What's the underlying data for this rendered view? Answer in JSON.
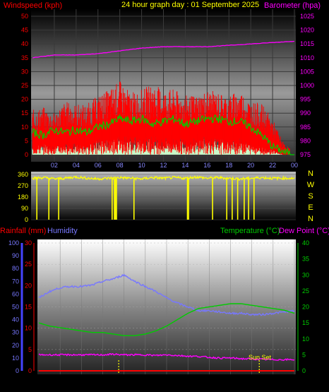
{
  "header": {
    "left_label": "Windspeed (kph)",
    "center_title": "24 hour graph day : 01 September 2025",
    "right_label": "Barometer (hpa)"
  },
  "bottom_header": {
    "rainfall": "Rainfall (mm)",
    "humidity": "Humidity",
    "temperature": "Temperature (°C)",
    "dewpoint": "Dew Point (°C)"
  },
  "sun_label": "Sun Set",
  "colors": {
    "windspeed": "#ff0000",
    "windavg": "#00cc00",
    "gust_fill": "#ccffcc",
    "barometer": "#ff00ff",
    "direction": "#ffff00",
    "humidity": "#7777ff",
    "temperature": "#00cc00",
    "dewpoint": "#ff00ff",
    "rainfall": "#ff0000"
  },
  "chart_data": [
    {
      "type": "area",
      "name": "wind",
      "x_ticks": [
        "02",
        "04",
        "06",
        "08",
        "10",
        "12",
        "14",
        "16",
        "18",
        "20",
        "22",
        "00"
      ],
      "y_left_ticks": [
        0,
        5,
        10,
        15,
        20,
        25,
        30,
        35,
        40,
        45,
        50
      ],
      "y_right_ticks": [
        975,
        980,
        985,
        990,
        995,
        1000,
        1005,
        1010,
        1015,
        1020,
        1025
      ],
      "ylim_left": [
        0,
        50
      ],
      "ylim_right": [
        975,
        1025
      ],
      "series": [
        {
          "name": "Windspeed",
          "x": [
            0,
            1,
            2,
            3,
            4,
            5,
            6,
            7,
            8,
            9,
            10,
            11,
            12,
            13,
            14,
            15,
            16,
            17,
            18,
            19,
            20,
            21,
            22,
            23,
            24
          ],
          "max": [
            15,
            16,
            14,
            18,
            17,
            17,
            20,
            22,
            25,
            21,
            22,
            24,
            22,
            22,
            20,
            20,
            22,
            21,
            20,
            22,
            18,
            17,
            12,
            4,
            1
          ],
          "min": [
            3,
            4,
            3,
            4,
            4,
            3,
            6,
            6,
            7,
            7,
            6,
            7,
            6,
            6,
            6,
            6,
            7,
            6,
            5,
            6,
            4,
            3,
            2,
            0,
            0
          ]
        },
        {
          "name": "Avg",
          "x": [
            0,
            1,
            2,
            3,
            4,
            5,
            6,
            7,
            8,
            9,
            10,
            11,
            12,
            13,
            14,
            15,
            16,
            17,
            18,
            19,
            20,
            21,
            22,
            23,
            24
          ],
          "values": [
            8,
            7,
            9,
            8,
            9,
            8,
            10,
            11,
            13,
            12,
            13,
            11,
            12,
            13,
            11,
            12,
            13,
            13,
            12,
            12,
            10,
            7,
            3,
            1,
            0
          ]
        },
        {
          "name": "Gust",
          "x": [
            0,
            1,
            2,
            3,
            4,
            5,
            6,
            7,
            8,
            9,
            10,
            11,
            12,
            13,
            14,
            15,
            16,
            17,
            18,
            19,
            20,
            21,
            22,
            23,
            24
          ],
          "values": [
            3,
            4,
            3,
            4,
            3,
            4,
            5,
            6,
            5,
            4,
            5,
            6,
            4,
            5,
            4,
            5,
            5,
            6,
            5,
            4,
            4,
            3,
            2,
            0,
            0
          ]
        },
        {
          "name": "Barometer",
          "x": [
            0,
            2,
            4,
            6,
            8,
            10,
            12,
            14,
            16,
            18,
            20,
            22,
            24
          ],
          "values": [
            1010,
            1011,
            1011,
            1011.5,
            1012.5,
            1013.5,
            1014,
            1014,
            1014,
            1014.5,
            1015,
            1015.5,
            1016
          ]
        }
      ]
    },
    {
      "type": "line",
      "name": "direction",
      "y_labels": [
        "360",
        "270",
        "180",
        "90",
        "0"
      ],
      "compass": [
        "N",
        "W",
        "S",
        "E",
        "N"
      ],
      "base": [
        330,
        335,
        325,
        330,
        340,
        330,
        325,
        330,
        335,
        330,
        325,
        335,
        330,
        335,
        330,
        340,
        330,
        335,
        330,
        325,
        330,
        335,
        330,
        330,
        330
      ],
      "drops": [
        0.4,
        1.5,
        2.4,
        7.3,
        7.5,
        7.6,
        7.7,
        9.3,
        14.2,
        14.3,
        16.5,
        17.8,
        18.3,
        18.8,
        19.4,
        19.8,
        20.3
      ]
    },
    {
      "type": "line",
      "name": "temperature",
      "x_ticks": [
        "02",
        "04",
        "06",
        "08",
        "10",
        "12",
        "14",
        "16",
        "18",
        "20",
        "22",
        "00"
      ],
      "humidity_ticks": [
        0,
        10,
        20,
        30,
        40,
        50,
        60,
        70,
        80,
        90,
        100
      ],
      "rain_ticks": [
        0,
        5,
        10,
        15,
        20,
        25,
        30
      ],
      "temp_ticks_right": [
        0,
        5,
        10,
        15,
        20,
        25,
        30,
        35,
        40
      ],
      "series": [
        {
          "name": "Humidity",
          "x": [
            0,
            1,
            2,
            3,
            4,
            5,
            6,
            7,
            8,
            9,
            10,
            11,
            12,
            13,
            14,
            15,
            16,
            17,
            18,
            19,
            20,
            21,
            22,
            23,
            24
          ],
          "values": [
            57,
            62,
            65,
            66,
            66,
            67,
            70,
            72,
            75,
            70,
            66,
            62,
            57,
            53,
            50,
            47,
            47,
            46,
            45,
            45,
            44,
            44,
            45,
            46,
            47
          ]
        },
        {
          "name": "Temperature",
          "x": [
            0,
            1,
            2,
            3,
            4,
            5,
            6,
            7,
            8,
            9,
            10,
            11,
            12,
            13,
            14,
            15,
            16,
            17,
            18,
            19,
            20,
            21,
            22,
            23,
            24
          ],
          "values": [
            15,
            14,
            13.5,
            13,
            12.5,
            12,
            12,
            11.5,
            11,
            11,
            11.5,
            12.5,
            14,
            16,
            18,
            19.5,
            20,
            20.5,
            21,
            21,
            20.5,
            20,
            19.5,
            19,
            18
          ]
        },
        {
          "name": "Dew Point",
          "x": [
            0,
            1,
            2,
            3,
            4,
            5,
            6,
            7,
            8,
            9,
            10,
            11,
            12,
            13,
            14,
            15,
            16,
            17,
            18,
            19,
            20,
            21,
            22,
            23,
            24
          ],
          "values": [
            5,
            5,
            5,
            5,
            5,
            5,
            5,
            5.2,
            5,
            5,
            5,
            4.8,
            5,
            4.8,
            4.6,
            4.5,
            4.2,
            4,
            4,
            3.8,
            3.7,
            3.6,
            3.5,
            3.5,
            3.5
          ]
        },
        {
          "name": "Rainfall",
          "x": [
            0,
            24
          ],
          "values": [
            0,
            0
          ]
        }
      ],
      "sun_markers": [
        7.5,
        20.7
      ]
    }
  ]
}
